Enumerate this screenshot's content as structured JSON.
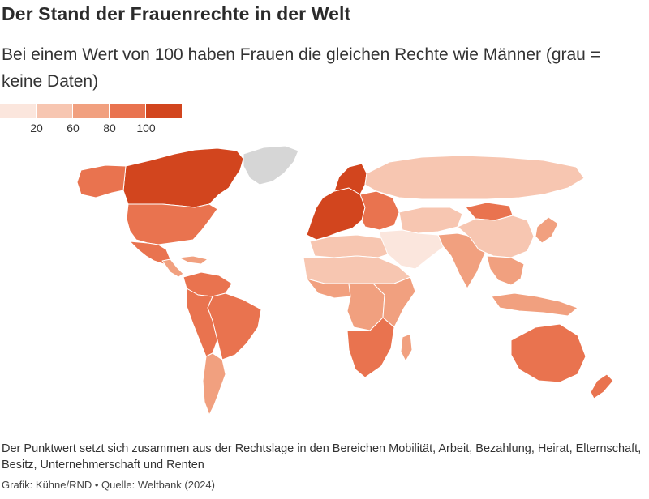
{
  "title": "Der Stand der Frauenrechte in der Welt",
  "subtitle": "Bei einem Wert von 100 haben Frauen die gleichen Rechte wie Männer (grau = keine Daten)",
  "legend": {
    "colors": [
      "#fbe6dd",
      "#f7c6b1",
      "#f1a07f",
      "#e9734f",
      "#d2451e"
    ],
    "labels": [
      "20",
      "60",
      "80",
      "100"
    ]
  },
  "colors": {
    "no_data": "#d6d6d6",
    "border": "#ffffff"
  },
  "regions": [
    {
      "name": "canada",
      "level": 5
    },
    {
      "name": "alaska",
      "level": 4
    },
    {
      "name": "greenland",
      "level": 0
    },
    {
      "name": "usa",
      "level": 4
    },
    {
      "name": "mexico",
      "level": 4
    },
    {
      "name": "central-america",
      "level": 3
    },
    {
      "name": "caribbean",
      "level": 3
    },
    {
      "name": "south-america-north",
      "level": 4
    },
    {
      "name": "brazil",
      "level": 4
    },
    {
      "name": "andes",
      "level": 4
    },
    {
      "name": "southern-cone",
      "level": 3
    },
    {
      "name": "europe-west",
      "level": 5
    },
    {
      "name": "scandinavia",
      "level": 5
    },
    {
      "name": "eastern-europe",
      "level": 4
    },
    {
      "name": "russia",
      "level": 2
    },
    {
      "name": "north-africa",
      "level": 2
    },
    {
      "name": "sahel",
      "level": 2
    },
    {
      "name": "west-africa",
      "level": 3
    },
    {
      "name": "central-africa",
      "level": 3
    },
    {
      "name": "east-africa",
      "level": 3
    },
    {
      "name": "southern-africa",
      "level": 4
    },
    {
      "name": "madagascar",
      "level": 3
    },
    {
      "name": "middle-east",
      "level": 1
    },
    {
      "name": "central-asia",
      "level": 2
    },
    {
      "name": "south-asia",
      "level": 3
    },
    {
      "name": "china",
      "level": 2
    },
    {
      "name": "mongolia",
      "level": 4
    },
    {
      "name": "southeast-asia",
      "level": 3
    },
    {
      "name": "japan-korea",
      "level": 3
    },
    {
      "name": "indonesia",
      "level": 3
    },
    {
      "name": "australia",
      "level": 4
    },
    {
      "name": "new-zealand",
      "level": 4
    }
  ],
  "footnote": "Der Punktwert setzt sich zusammen aus der Rechtslage in den Bereichen Mobilität, Arbeit, Bezahlung, Heirat, Elternschaft, Besitz, Unternehmerschaft und Renten",
  "source": "Grafik: Kühne/RND • Quelle: Weltbank (2024)"
}
